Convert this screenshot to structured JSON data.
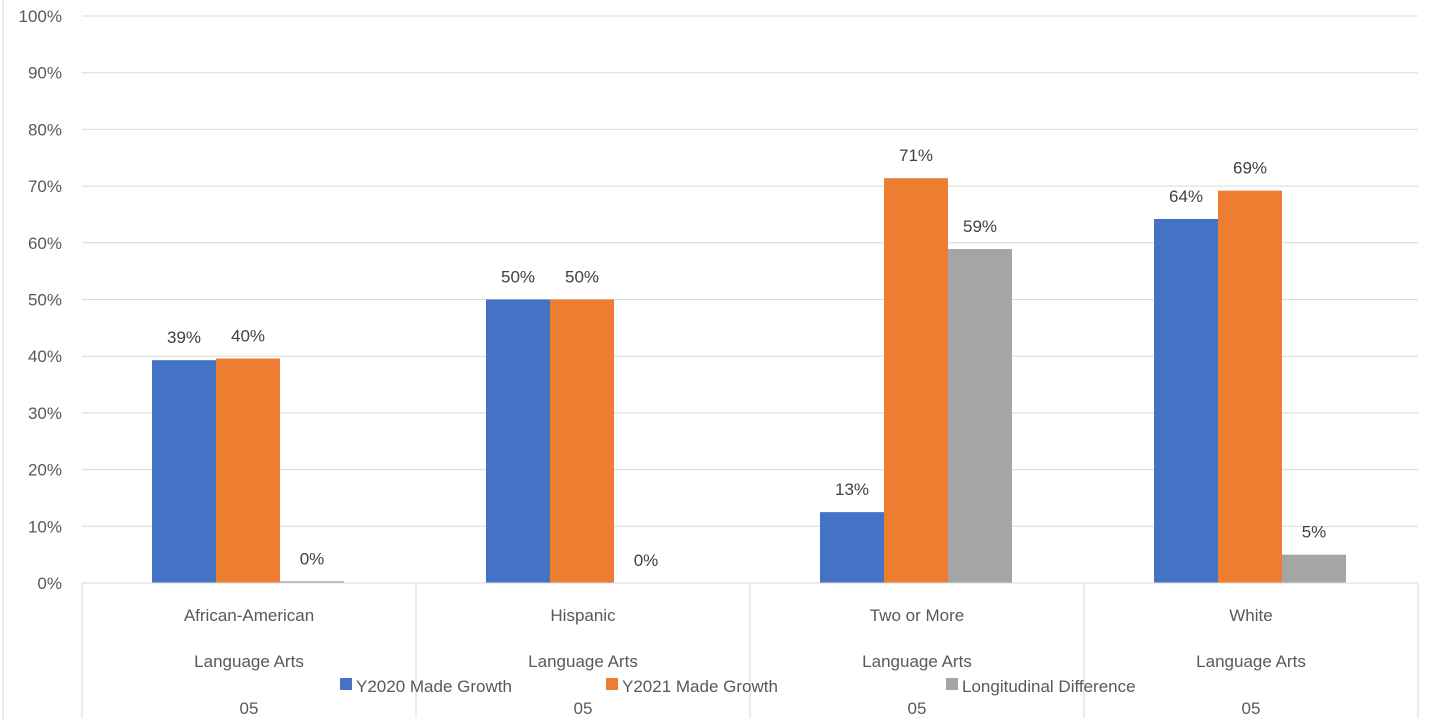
{
  "chart_data": {
    "type": "bar",
    "categories": [
      {
        "group": "African-American",
        "subject": "Language Arts",
        "grade": "05"
      },
      {
        "group": "Hispanic",
        "subject": "Language Arts",
        "grade": "05"
      },
      {
        "group": "Two or More",
        "subject": "Language Arts",
        "grade": "05"
      },
      {
        "group": "White",
        "subject": "Language Arts",
        "grade": "05"
      }
    ],
    "series": [
      {
        "name": "Y2020 Made Growth",
        "color": "#4472C4",
        "values": [
          39.3,
          50.0,
          12.5,
          64.2
        ],
        "labels": [
          "39%",
          "50%",
          "13%",
          "64%"
        ]
      },
      {
        "name": "Y2021 Made Growth",
        "color": "#ED7D31",
        "values": [
          39.6,
          50.0,
          71.4,
          69.2
        ],
        "labels": [
          "40%",
          "50%",
          "71%",
          "69%"
        ]
      },
      {
        "name": "Longitudinal Difference",
        "color": "#A5A5A5",
        "values": [
          0.3,
          0.0,
          58.9,
          5.0
        ],
        "labels": [
          "0%",
          "0%",
          "59%",
          "5%"
        ]
      }
    ],
    "ylim": [
      0,
      100
    ],
    "yticks": [
      "0%",
      "10%",
      "20%",
      "30%",
      "40%",
      "50%",
      "60%",
      "70%",
      "80%",
      "90%",
      "100%"
    ],
    "grid": true,
    "legend": "bottom-center",
    "title": "",
    "xlabel": "",
    "ylabel": ""
  }
}
